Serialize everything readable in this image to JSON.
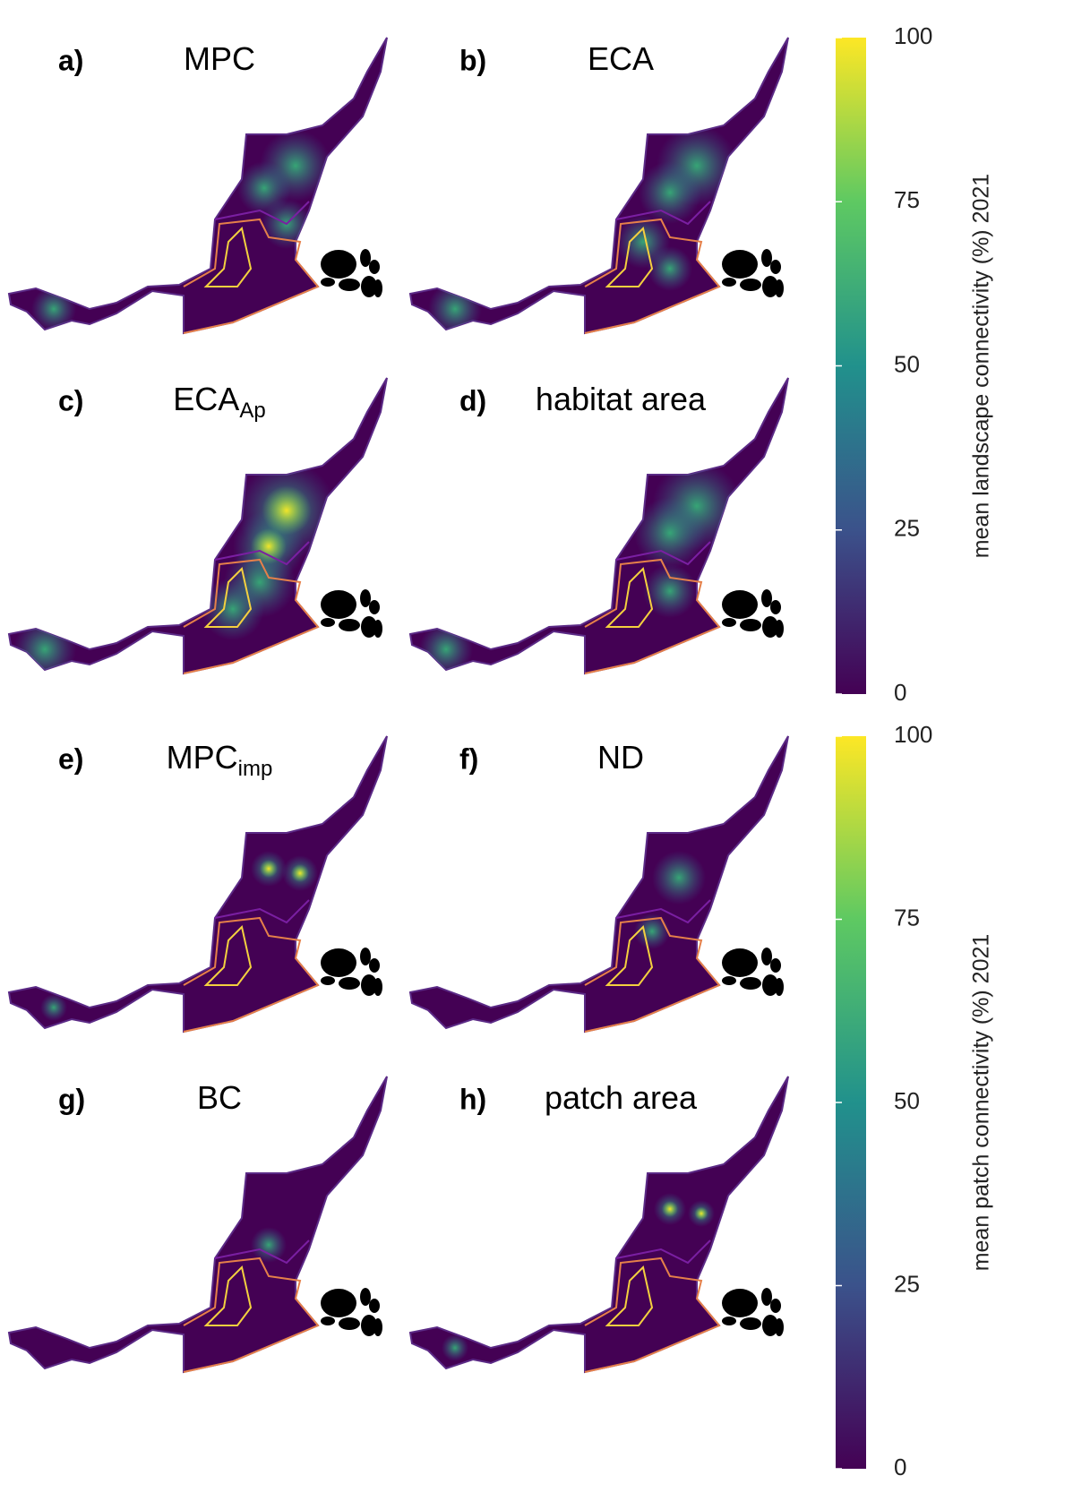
{
  "panels": [
    {
      "label": "a)",
      "title": "MPC"
    },
    {
      "label": "b)",
      "title": "ECA"
    },
    {
      "label": "c)",
      "title": "ECA",
      "title_subscript": "Ap"
    },
    {
      "label": "d)",
      "title": "habitat area"
    },
    {
      "label": "e)",
      "title": "MPC",
      "title_subscript": "imp"
    },
    {
      "label": "f)",
      "title": "ND"
    },
    {
      "label": "g)",
      "title": "BC"
    },
    {
      "label": "h)",
      "title": "patch area"
    }
  ],
  "colorbars": [
    {
      "label": "mean landscape connectivity (%) 2021",
      "lim": [
        0,
        100
      ],
      "ticks": [
        0,
        25,
        50,
        75,
        100
      ]
    },
    {
      "label": "mean patch connectivity (%) 2021",
      "lim": [
        0,
        100
      ],
      "ticks": [
        0,
        25,
        50,
        75,
        100
      ]
    }
  ]
}
